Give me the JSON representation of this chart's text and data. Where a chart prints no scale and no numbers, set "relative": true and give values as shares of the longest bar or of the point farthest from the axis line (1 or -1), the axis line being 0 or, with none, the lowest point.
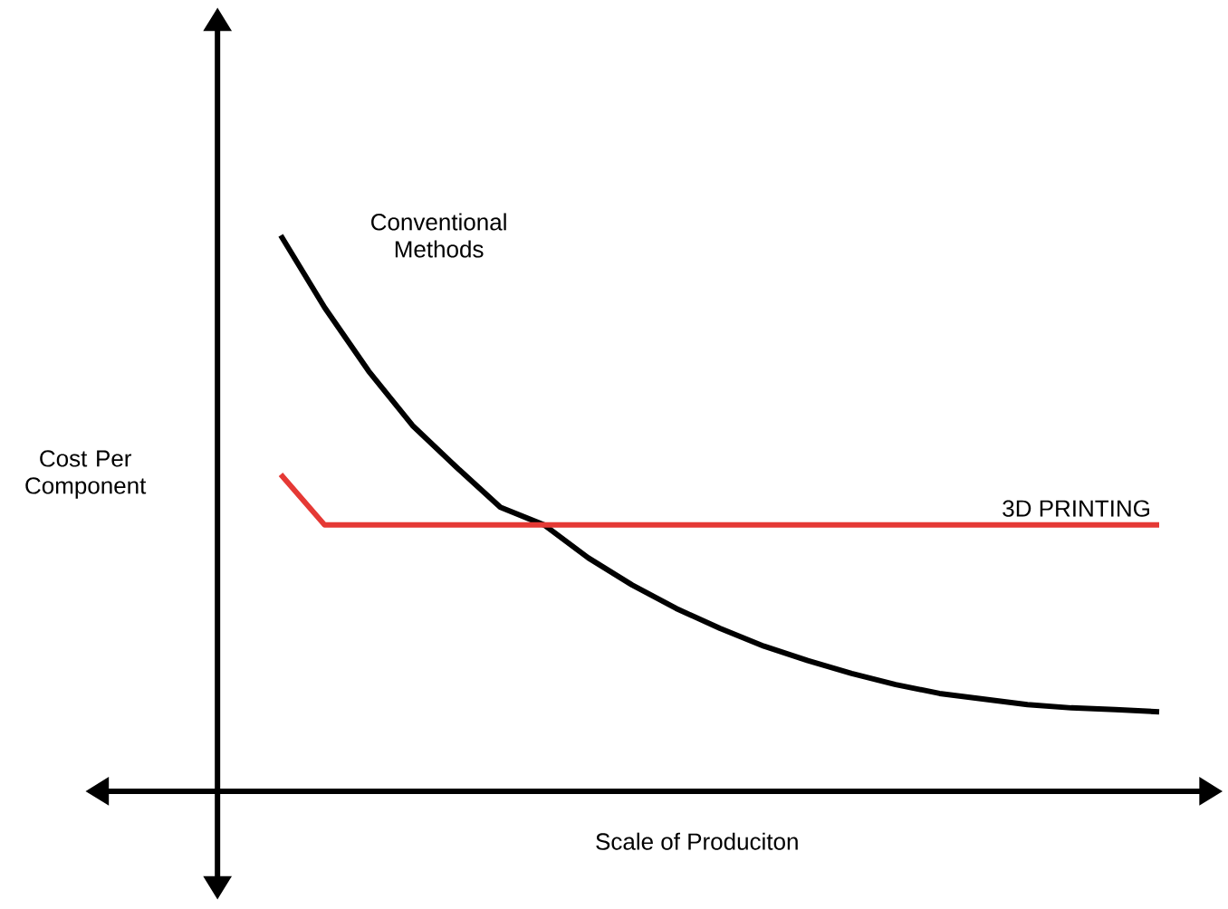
{
  "chart_data": {
    "type": "line",
    "relative": true,
    "xlabel": "Scale of Produciton",
    "ylabel": "Cost Per Component",
    "categories": [
      null,
      null,
      null,
      null,
      null,
      null,
      null,
      null,
      null,
      null,
      null,
      null,
      null,
      null,
      null,
      null,
      null,
      null,
      null,
      null,
      null
    ],
    "series": [
      {
        "name": "Conventional Methods",
        "color": "#000000",
        "values": [
          1.0,
          0.87,
          0.756,
          0.658,
          0.583,
          0.511,
          0.479,
          0.42,
          0.371,
          0.329,
          0.293,
          0.261,
          0.235,
          0.212,
          0.192,
          0.176,
          0.166,
          0.156,
          0.15,
          0.147,
          0.143
        ]
      },
      {
        "name": "3D PRINTING",
        "color": "#e53935",
        "values": [
          0.57,
          0.479,
          0.479,
          0.479,
          0.479,
          0.479,
          0.479,
          0.479,
          0.479,
          0.479,
          0.479,
          0.479,
          0.479,
          0.479,
          0.479,
          0.479,
          0.479,
          0.479,
          0.479,
          0.479,
          0.479
        ]
      }
    ]
  }
}
